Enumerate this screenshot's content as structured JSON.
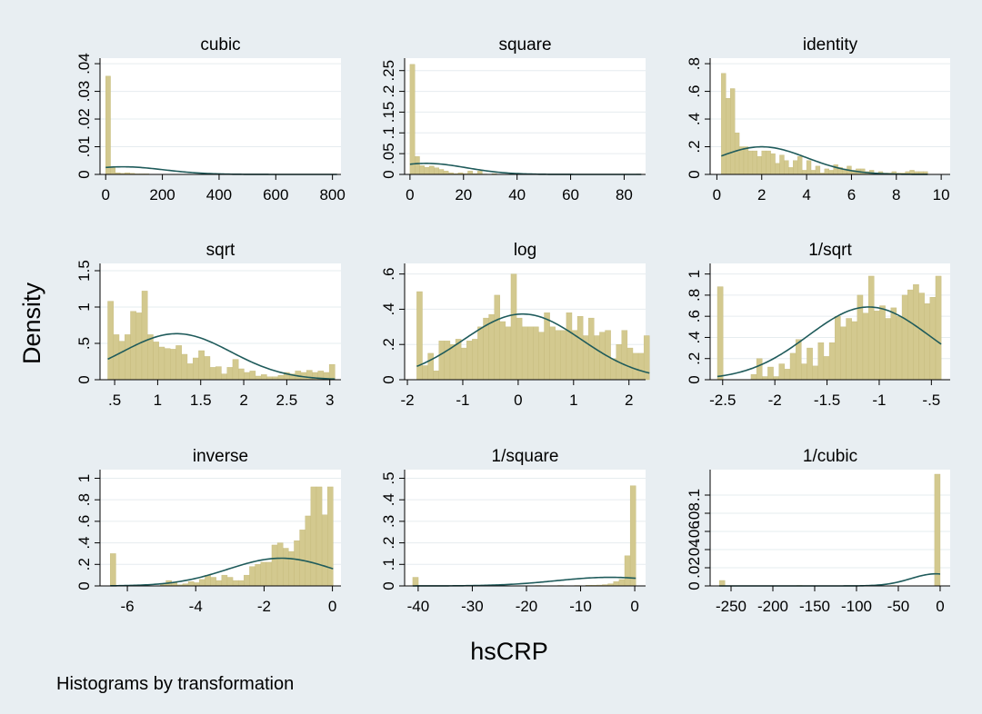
{
  "chart_data": {
    "type": "bar",
    "ylabel": "Density",
    "xlabel": "hsCRP",
    "note": "Histograms by transformation",
    "colors": {
      "background": "#e8eef2",
      "plot_bg": "#ffffff",
      "bar_fill": "#d3c98f",
      "bar_stroke": "#c4b97a",
      "curve": "#1f5b5b",
      "grid": "#e6ecef"
    },
    "panels": [
      {
        "title": "cubic",
        "xlim": [
          -20,
          830
        ],
        "ylim": [
          0,
          0.042
        ],
        "xticks": [
          0,
          200,
          400,
          600,
          800
        ],
        "xtick_labels": [
          "0",
          "200",
          "400",
          "600",
          "800"
        ],
        "yticks": [
          0,
          0.01,
          0.02,
          0.03,
          0.04
        ],
        "ytick_labels": [
          "0",
          ".01",
          ".02",
          ".03",
          ".04"
        ],
        "bin_start": 0,
        "bin_width": 17,
        "values": [
          0.0355,
          0.0028,
          0.0006,
          0.0004,
          0.0006,
          0.0004,
          0.0002,
          0.0002,
          0.0002,
          0.0001,
          0.0001,
          0.0001,
          0.0001,
          0.0001,
          0.0001,
          0,
          0.0001,
          0,
          0.0001,
          0,
          0,
          0,
          0.0001,
          0,
          0,
          0,
          0,
          0.0001,
          0,
          0,
          0,
          0,
          0,
          0,
          0,
          0.0001,
          0,
          0,
          0,
          0,
          0,
          0,
          0,
          0,
          0,
          0,
          0,
          0.0001
        ],
        "normal": {
          "mean": 60,
          "sd": 145
        }
      },
      {
        "title": "square",
        "xlim": [
          -2,
          88
        ],
        "ylim": [
          0,
          0.28
        ],
        "xticks": [
          0,
          20,
          40,
          60,
          80
        ],
        "xtick_labels": [
          "0",
          "20",
          "40",
          "60",
          "80"
        ],
        "yticks": [
          0,
          0.05,
          0.1,
          0.15,
          0.2,
          0.25
        ],
        "ytick_labels": [
          "0",
          ".05",
          ".1",
          ".15",
          ".2",
          ".25"
        ],
        "bin_start": 0,
        "bin_width": 1.8,
        "values": [
          0.265,
          0.043,
          0.021,
          0.017,
          0.02,
          0.016,
          0.012,
          0.008,
          0.004,
          0.002,
          0.004,
          0.002,
          0.008,
          0.002,
          0.008,
          0.001,
          0,
          0.002,
          0,
          0,
          0,
          0.001,
          0,
          0,
          0,
          0,
          0.001,
          0,
          0,
          0,
          0,
          0,
          0,
          0,
          0,
          0,
          0,
          0,
          0,
          0,
          0,
          0,
          0,
          0,
          0,
          0,
          0,
          0.001
        ],
        "normal": {
          "mean": 6,
          "sd": 15
        }
      },
      {
        "title": "identity",
        "xlim": [
          -0.3,
          10.4
        ],
        "ylim": [
          0,
          0.84
        ],
        "xticks": [
          0,
          2,
          4,
          6,
          8,
          10
        ],
        "xtick_labels": [
          "0",
          "2",
          "4",
          "6",
          "8",
          "10"
        ],
        "yticks": [
          0,
          0.2,
          0.4,
          0.6,
          0.8
        ],
        "ytick_labels": [
          "0",
          ".2",
          ".4",
          ".6",
          ".8"
        ],
        "bin_start": 0.2,
        "bin_width": 0.2,
        "values": [
          0.73,
          0.55,
          0.62,
          0.3,
          0.2,
          0.2,
          0.17,
          0.17,
          0.13,
          0.17,
          0.17,
          0.15,
          0.08,
          0.14,
          0.1,
          0.05,
          0.1,
          0.13,
          0.03,
          0.1,
          0.03,
          0.06,
          0.01,
          0.04,
          0.03,
          0.07,
          0.05,
          0.04,
          0.06,
          0.03,
          0.04,
          0.04,
          0.02,
          0.03,
          0.01,
          0.02,
          0.01,
          0.01,
          0.02,
          0.01,
          0.01,
          0.02,
          0.03,
          0.02,
          0.02,
          0.02
        ],
        "normal": {
          "mean": 2.0,
          "sd": 2.0
        }
      },
      {
        "title": "sqrt",
        "xlim": [
          0.33,
          3.13
        ],
        "ylim": [
          0,
          1.6
        ],
        "xticks": [
          0.5,
          1,
          1.5,
          2,
          2.5,
          3
        ],
        "xtick_labels": [
          ".5",
          "1",
          "1.5",
          "2",
          "2.5",
          "3"
        ],
        "yticks": [
          0,
          0.5,
          1,
          1.5
        ],
        "ytick_labels": [
          "0",
          ".5",
          "1",
          "1.5"
        ],
        "bin_start": 0.42,
        "bin_width": 0.066,
        "values": [
          1.08,
          0.62,
          0.53,
          0.62,
          0.94,
          0.92,
          1.22,
          0.62,
          0.52,
          0.45,
          0.43,
          0.42,
          0.47,
          0.35,
          0.22,
          0.3,
          0.4,
          0.32,
          0.17,
          0.18,
          0.08,
          0.17,
          0.28,
          0.15,
          0.1,
          0.12,
          0.05,
          0.07,
          0.04,
          0.04,
          0.06,
          0.1,
          0.08,
          0.12,
          0.1,
          0.13,
          0.1,
          0.12,
          0.1,
          0.21
        ],
        "normal": {
          "mean": 1.22,
          "sd": 0.63
        }
      },
      {
        "title": "log",
        "xlim": [
          -2.05,
          2.3
        ],
        "ylim": [
          0,
          0.66
        ],
        "xticks": [
          -2,
          -1,
          0,
          1,
          2
        ],
        "xtick_labels": [
          "-2",
          "-1",
          "0",
          "1",
          "2"
        ],
        "yticks": [
          0,
          0.2,
          0.4,
          0.6
        ],
        "ytick_labels": [
          "0",
          ".2",
          ".4",
          ".6"
        ],
        "bin_start": -1.83,
        "bin_width": 0.1,
        "values": [
          0.5,
          0.08,
          0.15,
          0.05,
          0.22,
          0.22,
          0.2,
          0.23,
          0.18,
          0.22,
          0.23,
          0.3,
          0.35,
          0.37,
          0.48,
          0.33,
          0.3,
          0.6,
          0.35,
          0.3,
          0.3,
          0.3,
          0.27,
          0.38,
          0.3,
          0.28,
          0.28,
          0.38,
          0.28,
          0.36,
          0.25,
          0.35,
          0.25,
          0.27,
          0.28,
          0.12,
          0.2,
          0.28,
          0.18,
          0.15,
          0.15,
          0.25
        ],
        "normal": {
          "mean": 0.08,
          "sd": 1.07
        }
      },
      {
        "title": "1/sqrt",
        "xlim": [
          -2.62,
          -0.32
        ],
        "ylim": [
          0,
          1.1
        ],
        "xticks": [
          -2.5,
          -2,
          -1.5,
          -1,
          -0.5
        ],
        "xtick_labels": [
          "-2.5",
          "-2",
          "-1.5",
          "-1",
          "-.5"
        ],
        "yticks": [
          0,
          0.2,
          0.4,
          0.6,
          0.8,
          1
        ],
        "ytick_labels": [
          "0",
          ".2",
          ".4",
          ".6",
          ".8",
          "1"
        ],
        "bin_start": -2.55,
        "bin_width": 0.0536,
        "values": [
          0.88,
          0,
          0,
          0,
          0,
          0,
          0.05,
          0.2,
          0.03,
          0.12,
          0.03,
          0.15,
          0.1,
          0.25,
          0.38,
          0.15,
          0.3,
          0.13,
          0.35,
          0.22,
          0.35,
          0.6,
          0.5,
          0.58,
          0.55,
          0.8,
          0.63,
          0.98,
          0.65,
          0.7,
          0.58,
          0.68,
          0.6,
          0.8,
          0.85,
          0.9,
          0.82,
          0.72,
          0.78,
          0.98
        ],
        "normal": {
          "mean": -1.1,
          "sd": 0.58
        }
      },
      {
        "title": "inverse",
        "xlim": [
          -6.8,
          0.25
        ],
        "ylim": [
          0,
          1.08
        ],
        "xticks": [
          -6,
          -4,
          -2,
          0
        ],
        "xtick_labels": [
          "-6",
          "-4",
          "-2",
          "0"
        ],
        "yticks": [
          0,
          0.2,
          0.4,
          0.6,
          0.8,
          1
        ],
        "ytick_labels": [
          "0",
          ".2",
          ".4",
          ".6",
          ".8",
          "1"
        ],
        "bin_start": -6.5,
        "bin_width": 0.163,
        "values": [
          0.3,
          0,
          0,
          0,
          0,
          0,
          0.01,
          0,
          0,
          0.02,
          0.05,
          0.03,
          0.01,
          0.02,
          0.04,
          0.03,
          0.06,
          0.1,
          0.08,
          0.05,
          0.1,
          0.08,
          0.05,
          0.05,
          0.1,
          0.18,
          0.2,
          0.22,
          0.22,
          0.38,
          0.4,
          0.35,
          0.32,
          0.42,
          0.52,
          0.65,
          0.92,
          0.92,
          0.66,
          0.92
        ],
        "normal": {
          "mean": -1.5,
          "sd": 1.55
        }
      },
      {
        "title": "1/square",
        "xlim": [
          -42.5,
          2
        ],
        "ylim": [
          0,
          0.54
        ],
        "xticks": [
          -40,
          -30,
          -20,
          -10,
          0
        ],
        "xtick_labels": [
          "-40",
          "-30",
          "-20",
          "-10",
          "0"
        ],
        "yticks": [
          0,
          0.1,
          0.2,
          0.3,
          0.4,
          0.5
        ],
        "ytick_labels": [
          "0",
          ".1",
          ".2",
          ".3",
          ".4",
          ".5"
        ],
        "bin_start": -41,
        "bin_width": 1.03,
        "values": [
          0.04,
          0,
          0,
          0,
          0,
          0,
          0,
          0,
          0.001,
          0,
          0,
          0,
          0,
          0,
          0,
          0,
          0,
          0,
          0,
          0,
          0.001,
          0,
          0.002,
          0,
          0,
          0,
          0.002,
          0,
          0,
          0.002,
          0,
          0.003,
          0.003,
          0.004,
          0.006,
          0.01,
          0.02,
          0.03,
          0.14,
          0.465
        ],
        "normal": {
          "mean": -4.5,
          "sd": 10
        }
      },
      {
        "title": "1/cubic",
        "xlim": [
          -275,
          12
        ],
        "ylim": [
          0,
          0.128
        ],
        "xticks": [
          -250,
          -200,
          -150,
          -100,
          -50,
          0
        ],
        "xtick_labels": [
          "-250",
          "-200",
          "-150",
          "-100",
          "-50",
          "0"
        ],
        "yticks": [
          0,
          0.02,
          0.04,
          0.06,
          0.08,
          0.1
        ],
        "ytick_labels": [
          "0",
          ".02",
          ".04",
          ".06",
          ".08",
          ".1"
        ],
        "bin_start": -264,
        "bin_width": 6.6,
        "values": [
          0.006,
          0,
          0,
          0,
          0,
          0,
          0,
          0,
          0,
          0,
          0,
          0,
          0,
          0,
          0.0005,
          0,
          0,
          0,
          0,
          0,
          0,
          0,
          0,
          0,
          0,
          0,
          0,
          0,
          0,
          0,
          0,
          0.0005,
          0,
          0,
          0,
          0,
          0,
          0,
          0,
          0.123
        ],
        "normal": {
          "mean": -5,
          "sd": 30
        }
      }
    ]
  }
}
